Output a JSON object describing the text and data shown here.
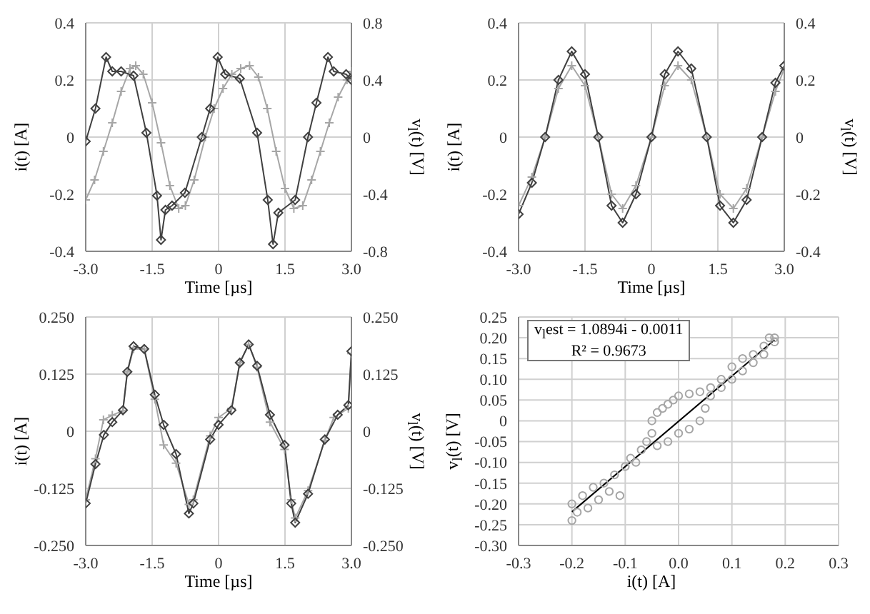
{
  "chart_data": [
    {
      "type": "line",
      "xlabel": "Time [µs]",
      "ylabel": "i(t) [A]",
      "y2label": "v$_{l}$(t) [V]",
      "xlim": [
        -3,
        3
      ],
      "xticks": [
        {
          "value": -3,
          "label": "-3.0"
        },
        {
          "value": -1.5,
          "label": "-1.5"
        },
        0,
        {
          "value": 1.5,
          "label": "1.5"
        },
        {
          "value": 3,
          "label": "3.0"
        }
      ],
      "ylim": [
        -0.4,
        0.4
      ],
      "yticks": [
        -0.4,
        -0.2,
        0,
        0.2,
        0.4
      ],
      "y2lim": [
        -0.8,
        0.8
      ],
      "y2ticks": [
        -0.8,
        -0.4,
        0,
        0.4,
        0.8
      ],
      "grid": true,
      "series": [
        {
          "color": "#a6a6a6",
          "marker": "cross",
          "x": [
            -3.0,
            -2.8,
            -2.6,
            -2.4,
            -2.2,
            -2.0,
            -1.87,
            -1.7,
            -1.5,
            -1.3,
            -1.1,
            -0.9,
            -0.75,
            -0.55,
            -0.3,
            -0.1,
            0.1,
            0.3,
            0.5,
            0.7,
            0.9,
            1.1,
            1.3,
            1.5,
            1.7,
            1.9,
            2.1,
            2.3,
            2.5,
            2.7,
            2.9,
            3.0
          ],
          "values": [
            -0.22,
            -0.15,
            -0.05,
            0.05,
            0.16,
            0.24,
            0.25,
            0.22,
            0.12,
            -0.02,
            -0.17,
            -0.25,
            -0.24,
            -0.15,
            0.0,
            0.1,
            0.17,
            0.22,
            0.24,
            0.25,
            0.21,
            0.1,
            -0.05,
            -0.18,
            -0.25,
            -0.24,
            -0.15,
            -0.05,
            0.05,
            0.14,
            0.2,
            0.23
          ]
        },
        {
          "color": "#404040",
          "marker": "diamond",
          "axis": "y2",
          "x": [
            -3.0,
            -2.78,
            -2.54,
            -2.4,
            -2.2,
            -1.92,
            -1.63,
            -1.39,
            -1.3,
            -1.2,
            -1.05,
            -0.76,
            -0.38,
            -0.19,
            -0.02,
            0.15,
            0.48,
            0.87,
            1.11,
            1.23,
            1.35,
            1.73,
            2.02,
            2.21,
            2.47,
            2.6,
            2.88,
            3.0
          ],
          "values": [
            -0.03,
            0.2,
            0.56,
            0.46,
            0.46,
            0.43,
            0.03,
            -0.41,
            -0.72,
            -0.51,
            -0.48,
            -0.39,
            0.0,
            0.2,
            0.56,
            0.44,
            0.41,
            0.03,
            -0.44,
            -0.75,
            -0.53,
            -0.44,
            0.0,
            0.24,
            0.56,
            0.46,
            0.44,
            0.4
          ]
        }
      ]
    },
    {
      "type": "line",
      "xlabel": "Time [µs]",
      "ylabel": "i(t) [A]",
      "y2label": "v$_{l}$(t) [V]",
      "xlim": [
        -3,
        3
      ],
      "xticks": [
        {
          "value": -3,
          "label": "-3.0"
        },
        {
          "value": -1.5,
          "label": "-1.5"
        },
        0,
        {
          "value": 1.5,
          "label": "1.5"
        },
        {
          "value": 3,
          "label": "3.0"
        }
      ],
      "ylim": [
        -0.4,
        0.4
      ],
      "yticks": [
        -0.4,
        -0.2,
        0,
        0.2,
        0.4
      ],
      "y2lim": [
        -0.4,
        0.4
      ],
      "y2ticks": [
        -0.4,
        -0.2,
        0,
        0.2,
        0.4
      ],
      "grid": true,
      "series": [
        {
          "color": "#a6a6a6",
          "marker": "cross",
          "x": [
            -3.0,
            -2.7,
            -2.4,
            -2.1,
            -1.8,
            -1.5,
            -1.2,
            -0.9,
            -0.65,
            -0.35,
            0.0,
            0.3,
            0.6,
            0.9,
            1.25,
            1.55,
            1.85,
            2.15,
            2.5,
            2.8,
            3.0
          ],
          "values": [
            -0.24,
            -0.14,
            0.0,
            0.17,
            0.25,
            0.18,
            0.0,
            -0.2,
            -0.25,
            -0.17,
            0.0,
            0.18,
            0.25,
            0.2,
            0.0,
            -0.2,
            -0.25,
            -0.18,
            0.0,
            0.16,
            0.24
          ]
        },
        {
          "color": "#404040",
          "marker": "diamond",
          "axis": "y2",
          "x": [
            -3.0,
            -2.7,
            -2.4,
            -2.1,
            -1.8,
            -1.5,
            -1.2,
            -0.9,
            -0.65,
            -0.35,
            0.0,
            0.3,
            0.6,
            0.9,
            1.25,
            1.55,
            1.85,
            2.15,
            2.5,
            2.8,
            3.0
          ],
          "values": [
            -0.27,
            -0.16,
            0.0,
            0.2,
            0.3,
            0.22,
            0.0,
            -0.24,
            -0.3,
            -0.2,
            0.0,
            0.22,
            0.3,
            0.24,
            0.0,
            -0.24,
            -0.3,
            -0.22,
            0.0,
            0.19,
            0.25
          ]
        }
      ]
    },
    {
      "type": "line",
      "xlabel": "Time [µs]",
      "ylabel": "i(t) [A]",
      "y2label": "v$_{l}$(t) [V]",
      "xlim": [
        -3,
        3
      ],
      "xticks": [
        {
          "value": -3,
          "label": "-3.0"
        },
        {
          "value": -1.5,
          "label": "-1.5"
        },
        0,
        {
          "value": 1.5,
          "label": "1.5"
        },
        {
          "value": 3,
          "label": "3.0"
        }
      ],
      "ylim": [
        -0.25,
        0.25
      ],
      "yticks": [
        {
          "value": -0.25,
          "label": "-0.250"
        },
        -0.125,
        0,
        0.125,
        {
          "value": 0.25,
          "label": "0.250"
        }
      ],
      "y2lim": [
        -0.25,
        0.25
      ],
      "y2ticks": [
        {
          "value": -0.25,
          "label": "-0.250"
        },
        -0.125,
        0,
        0.125,
        {
          "value": 0.25,
          "label": "0.250"
        }
      ],
      "grid": true,
      "series": [
        {
          "color": "#a6a6a6",
          "marker": "cross",
          "x": [
            -3.0,
            -2.78,
            -2.6,
            -2.4,
            -2.16,
            -2.06,
            -1.92,
            -1.68,
            -1.44,
            -1.24,
            -0.96,
            -0.67,
            -0.57,
            -0.19,
            0.0,
            0.29,
            0.48,
            0.68,
            0.87,
            1.16,
            1.49,
            1.64,
            1.73,
            2.02,
            2.4,
            2.6,
            2.93,
            3.0
          ],
          "values": [
            -0.15,
            -0.06,
            0.025,
            0.035,
            0.045,
            0.13,
            0.18,
            0.18,
            0.07,
            -0.03,
            -0.07,
            -0.16,
            -0.15,
            -0.01,
            0.03,
            0.05,
            0.15,
            0.19,
            0.14,
            0.02,
            -0.04,
            -0.15,
            -0.19,
            -0.13,
            -0.02,
            0.03,
            0.05,
            0.17
          ]
        },
        {
          "color": "#404040",
          "marker": "diamond",
          "axis": "y2",
          "x": [
            -3.0,
            -2.78,
            -2.59,
            -2.4,
            -2.16,
            -2.06,
            -1.92,
            -1.68,
            -1.44,
            -1.24,
            -0.96,
            -0.67,
            -0.57,
            -0.19,
            0.0,
            0.29,
            0.48,
            0.68,
            0.87,
            1.16,
            1.49,
            1.64,
            1.73,
            2.02,
            2.4,
            2.69,
            2.93,
            3.0
          ],
          "values": [
            -0.158,
            -0.072,
            -0.008,
            0.02,
            0.046,
            0.13,
            0.186,
            0.18,
            0.08,
            0.014,
            -0.05,
            -0.18,
            -0.158,
            -0.018,
            0.014,
            0.046,
            0.15,
            0.19,
            0.143,
            0.036,
            -0.03,
            -0.158,
            -0.2,
            -0.137,
            -0.018,
            0.036,
            0.057,
            0.175
          ]
        }
      ]
    },
    {
      "type": "scatter",
      "xlabel": "i(t) [A]",
      "ylabel": "v$_{l}$(t) [V]",
      "xlim": [
        -0.3,
        0.3
      ],
      "xticks": [
        -0.3,
        -0.2,
        -0.1,
        {
          "value": 0,
          "label": "0.0"
        },
        0.1,
        0.2,
        0.3
      ],
      "ylim": [
        -0.3,
        0.25
      ],
      "yticks": [
        {
          "value": -0.3,
          "label": "-0.30"
        },
        -0.25,
        {
          "value": -0.2,
          "label": "-0.20"
        },
        -0.15,
        {
          "value": -0.1,
          "label": "-0.10"
        },
        -0.05,
        0,
        0.05,
        {
          "value": 0.1,
          "label": "0.10"
        },
        0.15,
        {
          "value": 0.2,
          "label": "0.20"
        },
        0.25
      ],
      "grid": true,
      "annotations": [
        "v$_{l}$est = 1.0894i - 0.0011",
        "R² = 0.9673"
      ],
      "series": [
        {
          "color": "#a6a6a6",
          "marker": "circle",
          "x": [
            -0.2,
            -0.2,
            -0.19,
            -0.18,
            -0.17,
            -0.16,
            -0.15,
            -0.14,
            -0.13,
            -0.12,
            -0.11,
            -0.1,
            -0.09,
            -0.08,
            -0.07,
            -0.06,
            -0.05,
            -0.05,
            -0.04,
            -0.03,
            -0.02,
            -0.01,
            0.0,
            0.02,
            0.04,
            0.06,
            0.08,
            0.1,
            0.12,
            0.14,
            0.16,
            0.17,
            0.18,
            -0.04,
            -0.02,
            0.0,
            0.02,
            0.04,
            0.05,
            0.06,
            0.08,
            0.1,
            0.12,
            0.14,
            0.16,
            0.18
          ],
          "values": [
            -0.24,
            -0.2,
            -0.22,
            -0.18,
            -0.21,
            -0.16,
            -0.19,
            -0.15,
            -0.17,
            -0.13,
            -0.18,
            -0.11,
            -0.09,
            -0.1,
            -0.07,
            -0.05,
            -0.03,
            0.0,
            0.02,
            0.03,
            0.04,
            0.05,
            0.06,
            0.065,
            0.07,
            0.08,
            0.1,
            0.13,
            0.15,
            0.16,
            0.18,
            0.2,
            0.19,
            -0.06,
            -0.05,
            -0.03,
            -0.02,
            0.0,
            0.03,
            0.06,
            0.08,
            0.1,
            0.12,
            0.14,
            0.16,
            0.2
          ]
        },
        {
          "type": "line",
          "color": "#000000",
          "marker": "none",
          "x": [
            -0.2,
            0.18
          ],
          "values": [
            -0.219,
            0.195
          ]
        }
      ]
    }
  ]
}
